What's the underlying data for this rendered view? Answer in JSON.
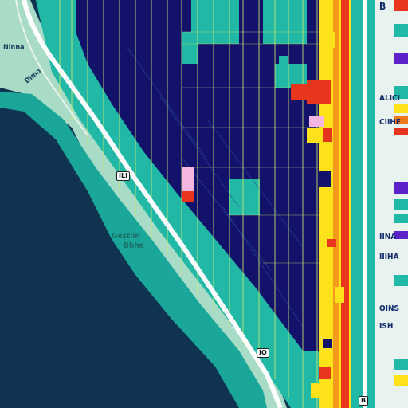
{
  "map": {
    "colors": {
      "water": "#0f3350",
      "shore": "#a8dcc6",
      "shore_band": "#1aa79a",
      "teal": "#21b8a6",
      "navy": "#13126b",
      "road": "#ffffff",
      "grid": "#cde86a",
      "yellow": "#ffe21a",
      "red": "#e8351e",
      "orange": "#f07a1c",
      "pink": "#f2b6e0",
      "purple": "#5a22c8",
      "light": "#e8f2ef"
    },
    "labels": {
      "top_left_1": "Ninna",
      "top_left_2": "Dimo",
      "shore_label_1": "Gestlm",
      "shore_label_2": "Bhhe",
      "right_label_1": "ALICI",
      "right_label_2": "CIIHE",
      "right_label_3": "IINA",
      "right_label_4": "IIIHA",
      "right_label_5": "OINS",
      "right_label_6": "ISH",
      "corner_label": "B",
      "shield_1": "ILI",
      "shield_2": "IO",
      "shield_3": "B"
    }
  }
}
